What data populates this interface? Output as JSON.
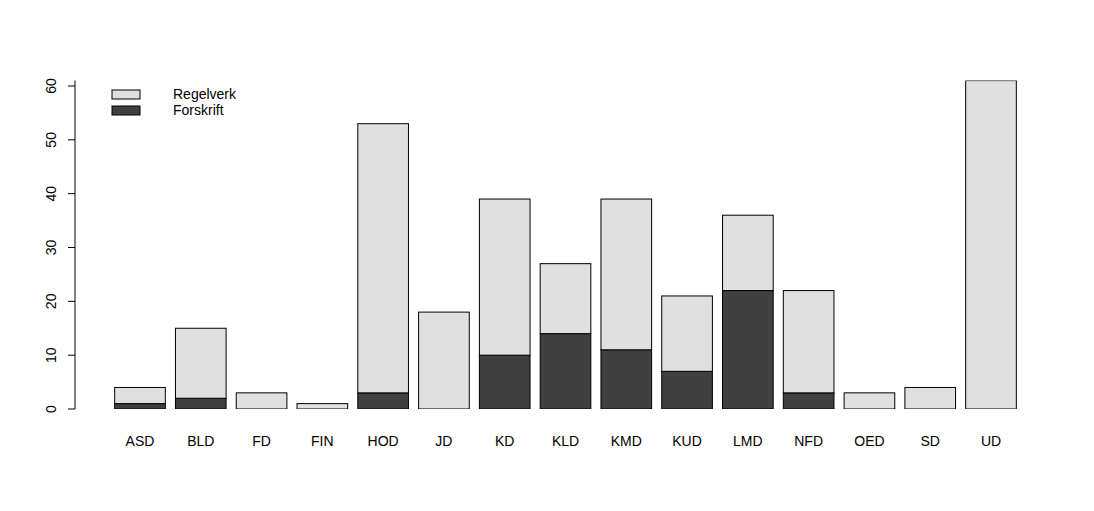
{
  "chart_data": {
    "type": "bar",
    "stacked": true,
    "legend": "topleft",
    "categories": [
      "ASD",
      "BLD",
      "FD",
      "FIN",
      "HOD",
      "JD",
      "KD",
      "KLD",
      "KMD",
      "KUD",
      "LMD",
      "NFD",
      "OED",
      "SD",
      "UD"
    ],
    "series": [
      {
        "name": "Forskrift",
        "color": "#404040",
        "values": [
          1,
          2,
          0,
          0,
          3,
          0,
          10,
          14,
          11,
          7,
          22,
          3,
          0,
          0,
          0
        ]
      },
      {
        "name": "Regelverk",
        "color": "#e0e0e0",
        "values": [
          3,
          13,
          3,
          1,
          50,
          18,
          29,
          13,
          28,
          14,
          14,
          19,
          3,
          4,
          61
        ]
      }
    ],
    "ylim": [
      0,
      61
    ],
    "yticks": [
      0,
      10,
      20,
      30,
      40,
      50,
      60
    ]
  }
}
